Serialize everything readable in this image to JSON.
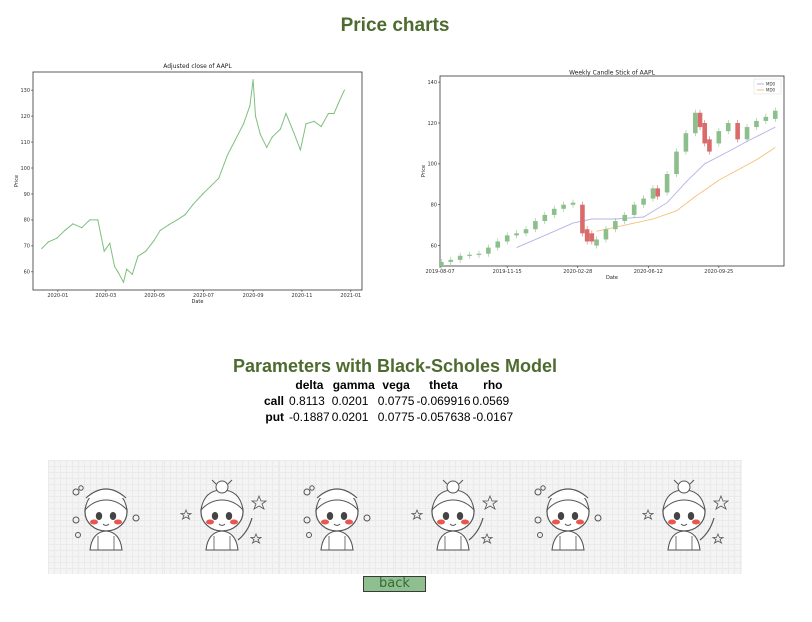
{
  "page": {
    "title": "Price charts",
    "bs_title": "Parameters with Black-Scholes Model",
    "back_label": "back"
  },
  "greeks": {
    "columns": [
      "delta",
      "gamma",
      "vega",
      "theta",
      "rho"
    ],
    "rows": [
      {
        "label": "call",
        "values": [
          "0.8113",
          "0.0201",
          "0.0775",
          "-0.069916",
          "0.0569"
        ]
      },
      {
        "label": "put",
        "values": [
          "-0.1887",
          "0.0201",
          "0.0775",
          "-0.057638",
          "-0.0167"
        ]
      }
    ]
  },
  "stickers": {
    "count": 6,
    "icons": [
      "girl-chef-sticker",
      "girl-waving-sticker",
      "girl-chef-sticker",
      "girl-waving-sticker",
      "girl-chef-sticker",
      "girl-waving-sticker"
    ]
  },
  "chart_data": [
    {
      "type": "line",
      "title": "Adjusted close of AAPL",
      "xlabel": "Date",
      "ylabel": "Price",
      "x_ticks": [
        "2020-01",
        "2020-03",
        "2020-05",
        "2020-07",
        "2020-09",
        "2020-11",
        "2021-01"
      ],
      "y_ticks": [
        60,
        70,
        80,
        90,
        100,
        110,
        120,
        130
      ],
      "xlim": [
        "2019-12-01",
        "2021-01-15"
      ],
      "ylim": [
        53,
        137
      ],
      "color": "#7fbf7f",
      "grid": false,
      "series": [
        {
          "x": [
            "2019-12-12",
            "2019-12-20",
            "2019-12-31",
            "2020-01-10",
            "2020-01-20",
            "2020-01-31",
            "2020-02-10",
            "2020-02-20",
            "2020-02-28",
            "2020-03-06",
            "2020-03-12",
            "2020-03-16",
            "2020-03-23",
            "2020-03-27",
            "2020-04-03",
            "2020-04-10",
            "2020-04-20",
            "2020-04-30",
            "2020-05-08",
            "2020-05-18",
            "2020-05-29",
            "2020-06-08",
            "2020-06-18",
            "2020-06-30",
            "2020-07-10",
            "2020-07-20",
            "2020-07-31",
            "2020-08-10",
            "2020-08-20",
            "2020-08-28",
            "2020-09-01",
            "2020-09-04",
            "2020-09-10",
            "2020-09-18",
            "2020-09-25",
            "2020-10-05",
            "2020-10-12",
            "2020-10-20",
            "2020-10-30",
            "2020-11-06",
            "2020-11-16",
            "2020-11-25",
            "2020-12-04",
            "2020-12-11",
            "2020-12-18",
            "2020-12-24"
          ],
          "values": [
            69,
            71.5,
            73,
            76,
            78.5,
            77,
            80,
            80,
            68,
            71,
            62,
            60,
            56,
            61,
            59,
            66,
            68,
            72,
            76,
            78,
            80,
            82,
            86,
            90,
            93,
            96,
            105,
            111,
            117,
            124,
            134,
            120,
            113,
            108,
            112,
            115,
            121,
            115,
            107,
            117,
            118,
            116,
            121,
            121,
            126,
            130
          ]
        }
      ]
    },
    {
      "type": "candlestick",
      "title": "Weekly Candle Stick of AAPL",
      "xlabel": "Date",
      "ylabel": "Price",
      "x_ticks": [
        "2019-08-07",
        "2019-11-15",
        "2020-02-28",
        "2020-06-12",
        "2020-09-25"
      ],
      "y_ticks": [
        60,
        80,
        100,
        120,
        140
      ],
      "ylim": [
        50,
        143
      ],
      "legend": [
        "MD0",
        "MD0"
      ],
      "legend_position": "top-right",
      "up_color": "#8cbf8c",
      "down_color": "#d96b6b",
      "ma_colors": [
        "#b6b2e6",
        "#f4c07a"
      ],
      "candles": [
        {
          "date": "2019-08-09",
          "open": 50,
          "close": 52
        },
        {
          "date": "2019-08-23",
          "open": 52,
          "close": 53
        },
        {
          "date": "2019-09-06",
          "open": 53,
          "close": 55
        },
        {
          "date": "2019-09-20",
          "open": 55,
          "close": 55.5
        },
        {
          "date": "2019-10-04",
          "open": 55.5,
          "close": 56
        },
        {
          "date": "2019-10-18",
          "open": 56,
          "close": 59
        },
        {
          "date": "2019-11-01",
          "open": 59,
          "close": 62
        },
        {
          "date": "2019-11-15",
          "open": 62,
          "close": 65
        },
        {
          "date": "2019-11-29",
          "open": 65,
          "close": 66
        },
        {
          "date": "2019-12-13",
          "open": 66,
          "close": 68
        },
        {
          "date": "2019-12-27",
          "open": 68,
          "close": 72
        },
        {
          "date": "2020-01-10",
          "open": 72,
          "close": 75
        },
        {
          "date": "2020-01-24",
          "open": 75,
          "close": 78
        },
        {
          "date": "2020-02-07",
          "open": 78,
          "close": 80
        },
        {
          "date": "2020-02-21",
          "open": 80,
          "close": 81
        },
        {
          "date": "2020-03-06",
          "open": 80,
          "close": 66
        },
        {
          "date": "2020-03-13",
          "open": 68,
          "close": 62
        },
        {
          "date": "2020-03-20",
          "open": 66,
          "close": 62
        },
        {
          "date": "2020-03-27",
          "open": 60,
          "close": 63
        },
        {
          "date": "2020-04-10",
          "open": 63,
          "close": 68
        },
        {
          "date": "2020-04-24",
          "open": 68,
          "close": 72
        },
        {
          "date": "2020-05-08",
          "open": 72,
          "close": 75
        },
        {
          "date": "2020-05-22",
          "open": 75,
          "close": 80
        },
        {
          "date": "2020-06-05",
          "open": 80,
          "close": 83
        },
        {
          "date": "2020-06-19",
          "open": 83,
          "close": 88
        },
        {
          "date": "2020-06-26",
          "open": 88,
          "close": 84
        },
        {
          "date": "2020-07-10",
          "open": 86,
          "close": 95
        },
        {
          "date": "2020-07-24",
          "open": 95,
          "close": 106
        },
        {
          "date": "2020-08-07",
          "open": 106,
          "close": 115
        },
        {
          "date": "2020-08-21",
          "open": 115,
          "close": 125
        },
        {
          "date": "2020-08-28",
          "open": 125,
          "close": 118
        },
        {
          "date": "2020-09-04",
          "open": 120,
          "close": 110
        },
        {
          "date": "2020-09-11",
          "open": 112,
          "close": 106
        },
        {
          "date": "2020-09-25",
          "open": 110,
          "close": 116
        },
        {
          "date": "2020-10-09",
          "open": 116,
          "close": 120
        },
        {
          "date": "2020-10-23",
          "open": 120,
          "close": 112
        },
        {
          "date": "2020-11-06",
          "open": 112,
          "close": 118
        },
        {
          "date": "2020-11-20",
          "open": 118,
          "close": 121
        },
        {
          "date": "2020-12-04",
          "open": 121,
          "close": 123
        },
        {
          "date": "2020-12-18",
          "open": 122,
          "close": 126
        }
      ],
      "ma_series": [
        {
          "x": [
            "2019-11-29",
            "2020-01-10",
            "2020-02-21",
            "2020-03-20",
            "2020-04-24",
            "2020-06-05",
            "2020-07-10",
            "2020-08-07",
            "2020-09-04",
            "2020-10-09",
            "2020-11-06",
            "2020-12-18"
          ],
          "values": [
            59,
            65,
            71,
            73,
            73,
            74,
            81,
            91,
            100,
            106,
            111,
            118
          ]
        },
        {
          "x": [
            "2020-03-27",
            "2020-04-24",
            "2020-05-22",
            "2020-06-19",
            "2020-07-24",
            "2020-08-21",
            "2020-09-25",
            "2020-10-23",
            "2020-11-20",
            "2020-12-18"
          ],
          "values": [
            67,
            69,
            71,
            73,
            77,
            84,
            92,
            97,
            102,
            108
          ]
        }
      ]
    }
  ]
}
